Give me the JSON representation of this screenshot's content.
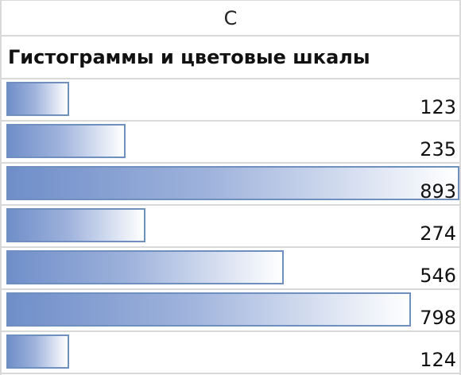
{
  "column_header": "C",
  "title": "Гистограммы и цветовые шкалы",
  "colors": {
    "bar_start": "#6f8ec9",
    "bar_end": "#ffffff",
    "bar_border": "#6f8fbf",
    "gridline": "#d9d9d9"
  },
  "chart_data": {
    "type": "bar",
    "orientation": "horizontal",
    "title": "Гистограммы и цветовые шкалы",
    "values": [
      123,
      235,
      893,
      274,
      546,
      798,
      124
    ],
    "labels": [
      "123",
      "235",
      "893",
      "274",
      "546",
      "798",
      "124"
    ],
    "xlim": [
      0,
      893
    ]
  }
}
